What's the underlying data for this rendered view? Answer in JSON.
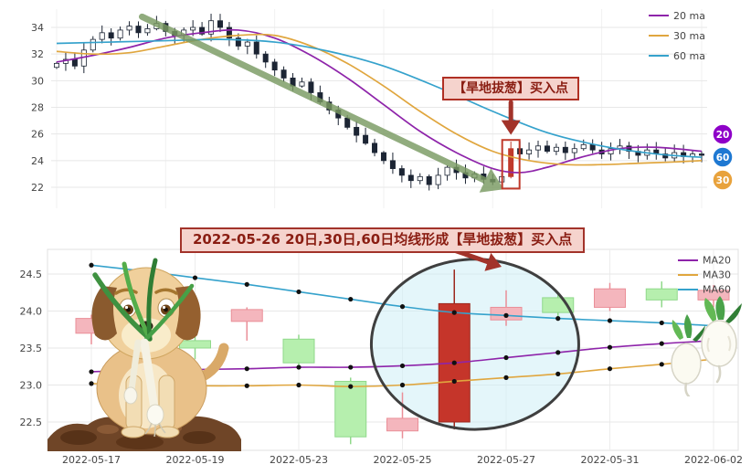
{
  "chart_data": [
    {
      "name": "daily_candlestick_with_ma",
      "type": "candlestick",
      "yticks": [
        22,
        24,
        26,
        28,
        30,
        32,
        34
      ],
      "ylim": [
        20.3,
        35.6
      ],
      "open_first": 31.0,
      "closes": [
        31.3,
        31.6,
        31.1,
        32.3,
        33.1,
        33.6,
        33.2,
        33.8,
        34.1,
        33.6,
        33.9,
        34.3,
        33.7,
        33.4,
        33.8,
        34.0,
        33.5,
        34.5,
        34.0,
        33.2,
        32.6,
        32.9,
        32.0,
        31.4,
        30.8,
        30.2,
        29.6,
        29.9,
        29.1,
        28.4,
        27.8,
        27.2,
        26.5,
        25.9,
        25.3,
        24.6,
        24.0,
        23.4,
        22.9,
        22.5,
        22.8,
        22.2,
        22.9,
        23.5,
        23.1,
        22.7,
        23.0,
        22.6,
        22.4,
        22.8,
        24.9,
        24.5,
        24.8,
        25.1,
        24.7,
        25.0,
        24.6,
        24.9,
        25.2,
        24.8,
        24.5,
        24.9,
        25.1,
        24.7,
        24.4,
        24.8,
        24.5,
        24.2,
        24.6,
        24.3,
        24.5,
        24.4
      ],
      "highlight_index": 50,
      "highlight_color": "#c0392b",
      "up_color": "#ffffff",
      "down_color": "#1c2534",
      "wick_color": "#1c2534",
      "ma_lines": [
        {
          "label": "20 ma",
          "color": "#8E24AA",
          "anchors": [
            [
              0,
              31.4
            ],
            [
              4,
              31.9
            ],
            [
              8,
              32.5
            ],
            [
              12,
              33.2
            ],
            [
              16,
              33.6
            ],
            [
              20,
              33.8
            ],
            [
              24,
              33.2
            ],
            [
              28,
              31.9
            ],
            [
              32,
              30.2
            ],
            [
              36,
              28.2
            ],
            [
              40,
              26.2
            ],
            [
              44,
              24.6
            ],
            [
              48,
              23.4
            ],
            [
              51,
              23.1
            ],
            [
              54,
              23.5
            ],
            [
              58,
              24.3
            ],
            [
              62,
              24.9
            ],
            [
              66,
              25.0
            ],
            [
              71,
              24.7
            ]
          ]
        },
        {
          "label": "30 ma",
          "color": "#E0A63E",
          "anchors": [
            [
              0,
              32.2
            ],
            [
              4,
              32.0
            ],
            [
              8,
              32.1
            ],
            [
              12,
              32.6
            ],
            [
              16,
              33.1
            ],
            [
              20,
              33.4
            ],
            [
              24,
              33.4
            ],
            [
              28,
              32.6
            ],
            [
              32,
              31.3
            ],
            [
              36,
              29.6
            ],
            [
              40,
              27.7
            ],
            [
              44,
              26.0
            ],
            [
              48,
              24.7
            ],
            [
              52,
              24.0
            ],
            [
              56,
              23.7
            ],
            [
              60,
              23.7
            ],
            [
              64,
              23.8
            ],
            [
              68,
              23.9
            ],
            [
              71,
              24.0
            ]
          ]
        },
        {
          "label": "60 ma",
          "color": "#35A2CC",
          "anchors": [
            [
              0,
              32.8
            ],
            [
              6,
              32.9
            ],
            [
              12,
              33.0
            ],
            [
              18,
              33.1
            ],
            [
              24,
              32.9
            ],
            [
              30,
              32.2
            ],
            [
              36,
              31.1
            ],
            [
              42,
              29.5
            ],
            [
              48,
              27.7
            ],
            [
              54,
              26.1
            ],
            [
              60,
              25.1
            ],
            [
              66,
              24.5
            ],
            [
              71,
              24.25
            ]
          ]
        }
      ],
      "annotation": {
        "label": "【旱地拔葱】买入点",
        "border": "#b03024",
        "bg": "#f5d3cd",
        "text_color": "#8a1d12"
      },
      "trend_arrow_color": "#7a9a62",
      "badges": [
        {
          "label": "20",
          "color": "#8e00c8"
        },
        {
          "label": "60",
          "color": "#1e78d2"
        },
        {
          "label": "30",
          "color": "#e8a23c"
        }
      ]
    },
    {
      "name": "zoomed_candlestick_signal_week",
      "type": "candlestick",
      "title": "2022-05-26 20日,30日,60日均线形成【旱地拔葱】买入点",
      "title_style": {
        "border": "#a2332a",
        "bg": "#f5d3cd",
        "text_color": "#8a1d12"
      },
      "dates": [
        "2022-05-17",
        "2022-05-18",
        "2022-05-19",
        "2022-05-20",
        "2022-05-23",
        "2022-05-24",
        "2022-05-25",
        "2022-05-26",
        "2022-05-27",
        "2022-05-30",
        "2022-05-31",
        "2022-06-01",
        "2022-06-02"
      ],
      "xtick_indices": [
        0,
        2,
        4,
        6,
        8,
        10,
        12
      ],
      "yticks": [
        22.5,
        23.0,
        23.5,
        24.0,
        24.5
      ],
      "candles": [
        {
          "date": "2022-05-17",
          "o": 23.7,
          "h": 23.95,
          "l": 23.55,
          "c": 23.9
        },
        {
          "date": "2022-05-18",
          "o": 23.9,
          "h": 23.98,
          "l": 23.55,
          "c": 23.62
        },
        {
          "date": "2022-05-19",
          "o": 23.6,
          "h": 23.75,
          "l": 23.35,
          "c": 23.5
        },
        {
          "date": "2022-05-20",
          "o": 23.86,
          "h": 24.05,
          "l": 23.6,
          "c": 24.02
        },
        {
          "date": "2022-05-23",
          "o": 23.62,
          "h": 23.68,
          "l": 23.22,
          "c": 23.3
        },
        {
          "date": "2022-05-24",
          "o": 23.05,
          "h": 23.1,
          "l": 22.2,
          "c": 22.3
        },
        {
          "date": "2022-05-25",
          "o": 22.38,
          "h": 22.9,
          "l": 22.28,
          "c": 22.55
        },
        {
          "date": "2022-05-26",
          "o": 22.5,
          "h": 24.56,
          "l": 22.4,
          "c": 24.1
        },
        {
          "date": "2022-05-27",
          "o": 23.88,
          "h": 24.28,
          "l": 23.8,
          "c": 24.05
        },
        {
          "date": "2022-05-30",
          "o": 24.18,
          "h": 24.25,
          "l": 23.9,
          "c": 23.98
        },
        {
          "date": "2022-05-31",
          "o": 24.05,
          "h": 24.38,
          "l": 24.0,
          "c": 24.3
        },
        {
          "date": "2022-06-01",
          "o": 24.3,
          "h": 24.4,
          "l": 24.05,
          "c": 24.15
        },
        {
          "date": "2022-06-02",
          "o": 24.15,
          "h": 24.35,
          "l": 24.05,
          "c": 24.28
        }
      ],
      "signal_index": 7,
      "signal_date": "2022-05-26",
      "colors": {
        "up": "#f4b6bd",
        "up_border": "#ea8f98",
        "down": "#b6efae",
        "down_border": "#90d98b",
        "signal": "#c5352a",
        "signal_border": "#9c281e",
        "marker": "#111111"
      },
      "ma_series": [
        {
          "label": "MA20",
          "color": "#8E24AA",
          "values": [
            23.18,
            23.2,
            23.21,
            23.22,
            23.24,
            23.24,
            23.26,
            23.3,
            23.37,
            23.44,
            23.51,
            23.56,
            23.6
          ]
        },
        {
          "label": "MA30",
          "color": "#E0A63E",
          "values": [
            23.02,
            23.0,
            22.99,
            22.99,
            23.0,
            22.98,
            23.0,
            23.05,
            23.1,
            23.15,
            23.22,
            23.28,
            23.35
          ]
        },
        {
          "label": "MA60",
          "color": "#35A2CC",
          "values": [
            24.62,
            24.54,
            24.45,
            24.36,
            24.26,
            24.16,
            24.06,
            23.98,
            23.94,
            23.9,
            23.87,
            23.84,
            23.8
          ]
        }
      ],
      "ellipse": {
        "center_day": 7.4,
        "center_price": 23.55,
        "rx_days": 2.0,
        "ry_price": 1.15,
        "stroke": "#3f3f3f",
        "fill": "#cdeef6"
      },
      "arrow_color": "#a2332a"
    }
  ]
}
